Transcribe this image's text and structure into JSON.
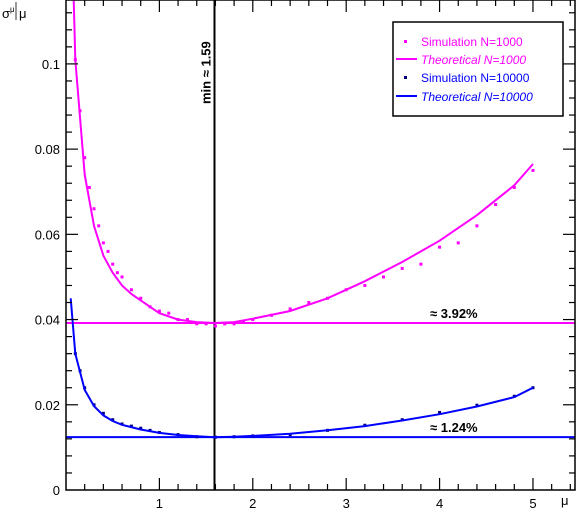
{
  "chart_data": {
    "type": "scatter",
    "title": "",
    "xlabel": "μ",
    "ylabel_num": "σ",
    "ylabel_num_sub": "μ",
    "ylabel_den": "μ",
    "xlim": [
      0,
      5.45
    ],
    "ylim": [
      0,
      0.115
    ],
    "x_ticks": [
      1,
      2,
      3,
      4,
      5
    ],
    "x_tick_labels": [
      "1",
      "2",
      "3",
      "4",
      "5"
    ],
    "y_ticks": [
      0,
      0.02,
      0.04,
      0.06,
      0.08,
      0.1
    ],
    "y_tick_labels": [
      "0",
      "0.02",
      "0.04",
      "0.06",
      "0.08",
      "0.1"
    ],
    "grid": false,
    "legend_position": "top-right",
    "series": [
      {
        "name": "Simulation N=1000",
        "kind": "points",
        "color": "#ff00ff",
        "x": [
          0.1,
          0.15,
          0.2,
          0.25,
          0.3,
          0.35,
          0.4,
          0.45,
          0.5,
          0.55,
          0.6,
          0.7,
          0.8,
          0.9,
          1.0,
          1.1,
          1.2,
          1.3,
          1.4,
          1.5,
          1.6,
          1.7,
          1.8,
          1.9,
          2.0,
          2.2,
          2.4,
          2.6,
          2.8,
          3.0,
          3.2,
          3.4,
          3.6,
          3.8,
          4.0,
          4.2,
          4.4,
          4.6,
          4.8,
          5.0
        ],
        "y": [
          0.101,
          0.089,
          0.078,
          0.071,
          0.066,
          0.062,
          0.058,
          0.056,
          0.053,
          0.051,
          0.05,
          0.047,
          0.045,
          0.043,
          0.042,
          0.0415,
          0.04,
          0.04,
          0.039,
          0.039,
          0.0385,
          0.039,
          0.039,
          0.0395,
          0.04,
          0.041,
          0.0425,
          0.044,
          0.045,
          0.047,
          0.048,
          0.05,
          0.052,
          0.053,
          0.057,
          0.058,
          0.062,
          0.067,
          0.071,
          0.075
        ]
      },
      {
        "name": "Theoretical N=1000",
        "kind": "line",
        "color": "#ff00ff",
        "x": [
          0.05,
          0.1,
          0.2,
          0.3,
          0.4,
          0.5,
          0.6,
          0.7,
          0.8,
          1.0,
          1.2,
          1.4,
          1.59,
          1.8,
          2.0,
          2.4,
          2.8,
          3.2,
          3.6,
          4.0,
          4.4,
          4.8,
          5.0
        ],
        "y": [
          0.142,
          0.101,
          0.074,
          0.062,
          0.055,
          0.051,
          0.048,
          0.046,
          0.0445,
          0.0415,
          0.04,
          0.0394,
          0.0392,
          0.0394,
          0.0402,
          0.042,
          0.045,
          0.049,
          0.0535,
          0.0585,
          0.0645,
          0.0715,
          0.0765
        ]
      },
      {
        "name": "Simulation N=10000",
        "kind": "points",
        "color": "#000080",
        "x": [
          0.1,
          0.15,
          0.2,
          0.3,
          0.4,
          0.5,
          0.6,
          0.7,
          0.8,
          0.9,
          1.0,
          1.2,
          1.4,
          1.6,
          1.8,
          2.0,
          2.4,
          2.8,
          3.2,
          3.6,
          4.0,
          4.4,
          4.8,
          5.0
        ],
        "y": [
          0.032,
          0.028,
          0.024,
          0.02,
          0.018,
          0.0165,
          0.0155,
          0.015,
          0.0145,
          0.014,
          0.0135,
          0.013,
          0.0125,
          0.0124,
          0.0125,
          0.0127,
          0.013,
          0.014,
          0.0152,
          0.0165,
          0.0182,
          0.0199,
          0.022,
          0.024
        ]
      },
      {
        "name": "Theoretical N=10000",
        "kind": "line",
        "color": "#0000ff",
        "x": [
          0.05,
          0.1,
          0.2,
          0.3,
          0.4,
          0.5,
          0.6,
          0.8,
          1.0,
          1.2,
          1.4,
          1.59,
          1.8,
          2.0,
          2.4,
          2.8,
          3.2,
          3.6,
          4.0,
          4.4,
          4.8,
          5.0
        ],
        "y": [
          0.045,
          0.032,
          0.0235,
          0.0197,
          0.0175,
          0.0162,
          0.0153,
          0.0142,
          0.0134,
          0.0129,
          0.0126,
          0.0124,
          0.0125,
          0.0127,
          0.0132,
          0.014,
          0.015,
          0.0163,
          0.0178,
          0.0196,
          0.0218,
          0.024
        ]
      }
    ],
    "reference_lines": [
      {
        "orientation": "horizontal",
        "value": 0.0392,
        "color": "#ff00ff",
        "label": "≈ 3.92%"
      },
      {
        "orientation": "horizontal",
        "value": 0.0124,
        "color": "#0000ff",
        "label": "≈ 1.24%"
      },
      {
        "orientation": "vertical",
        "value": 1.59,
        "color": "#000000",
        "label": "min ≈ 1.59"
      }
    ]
  }
}
